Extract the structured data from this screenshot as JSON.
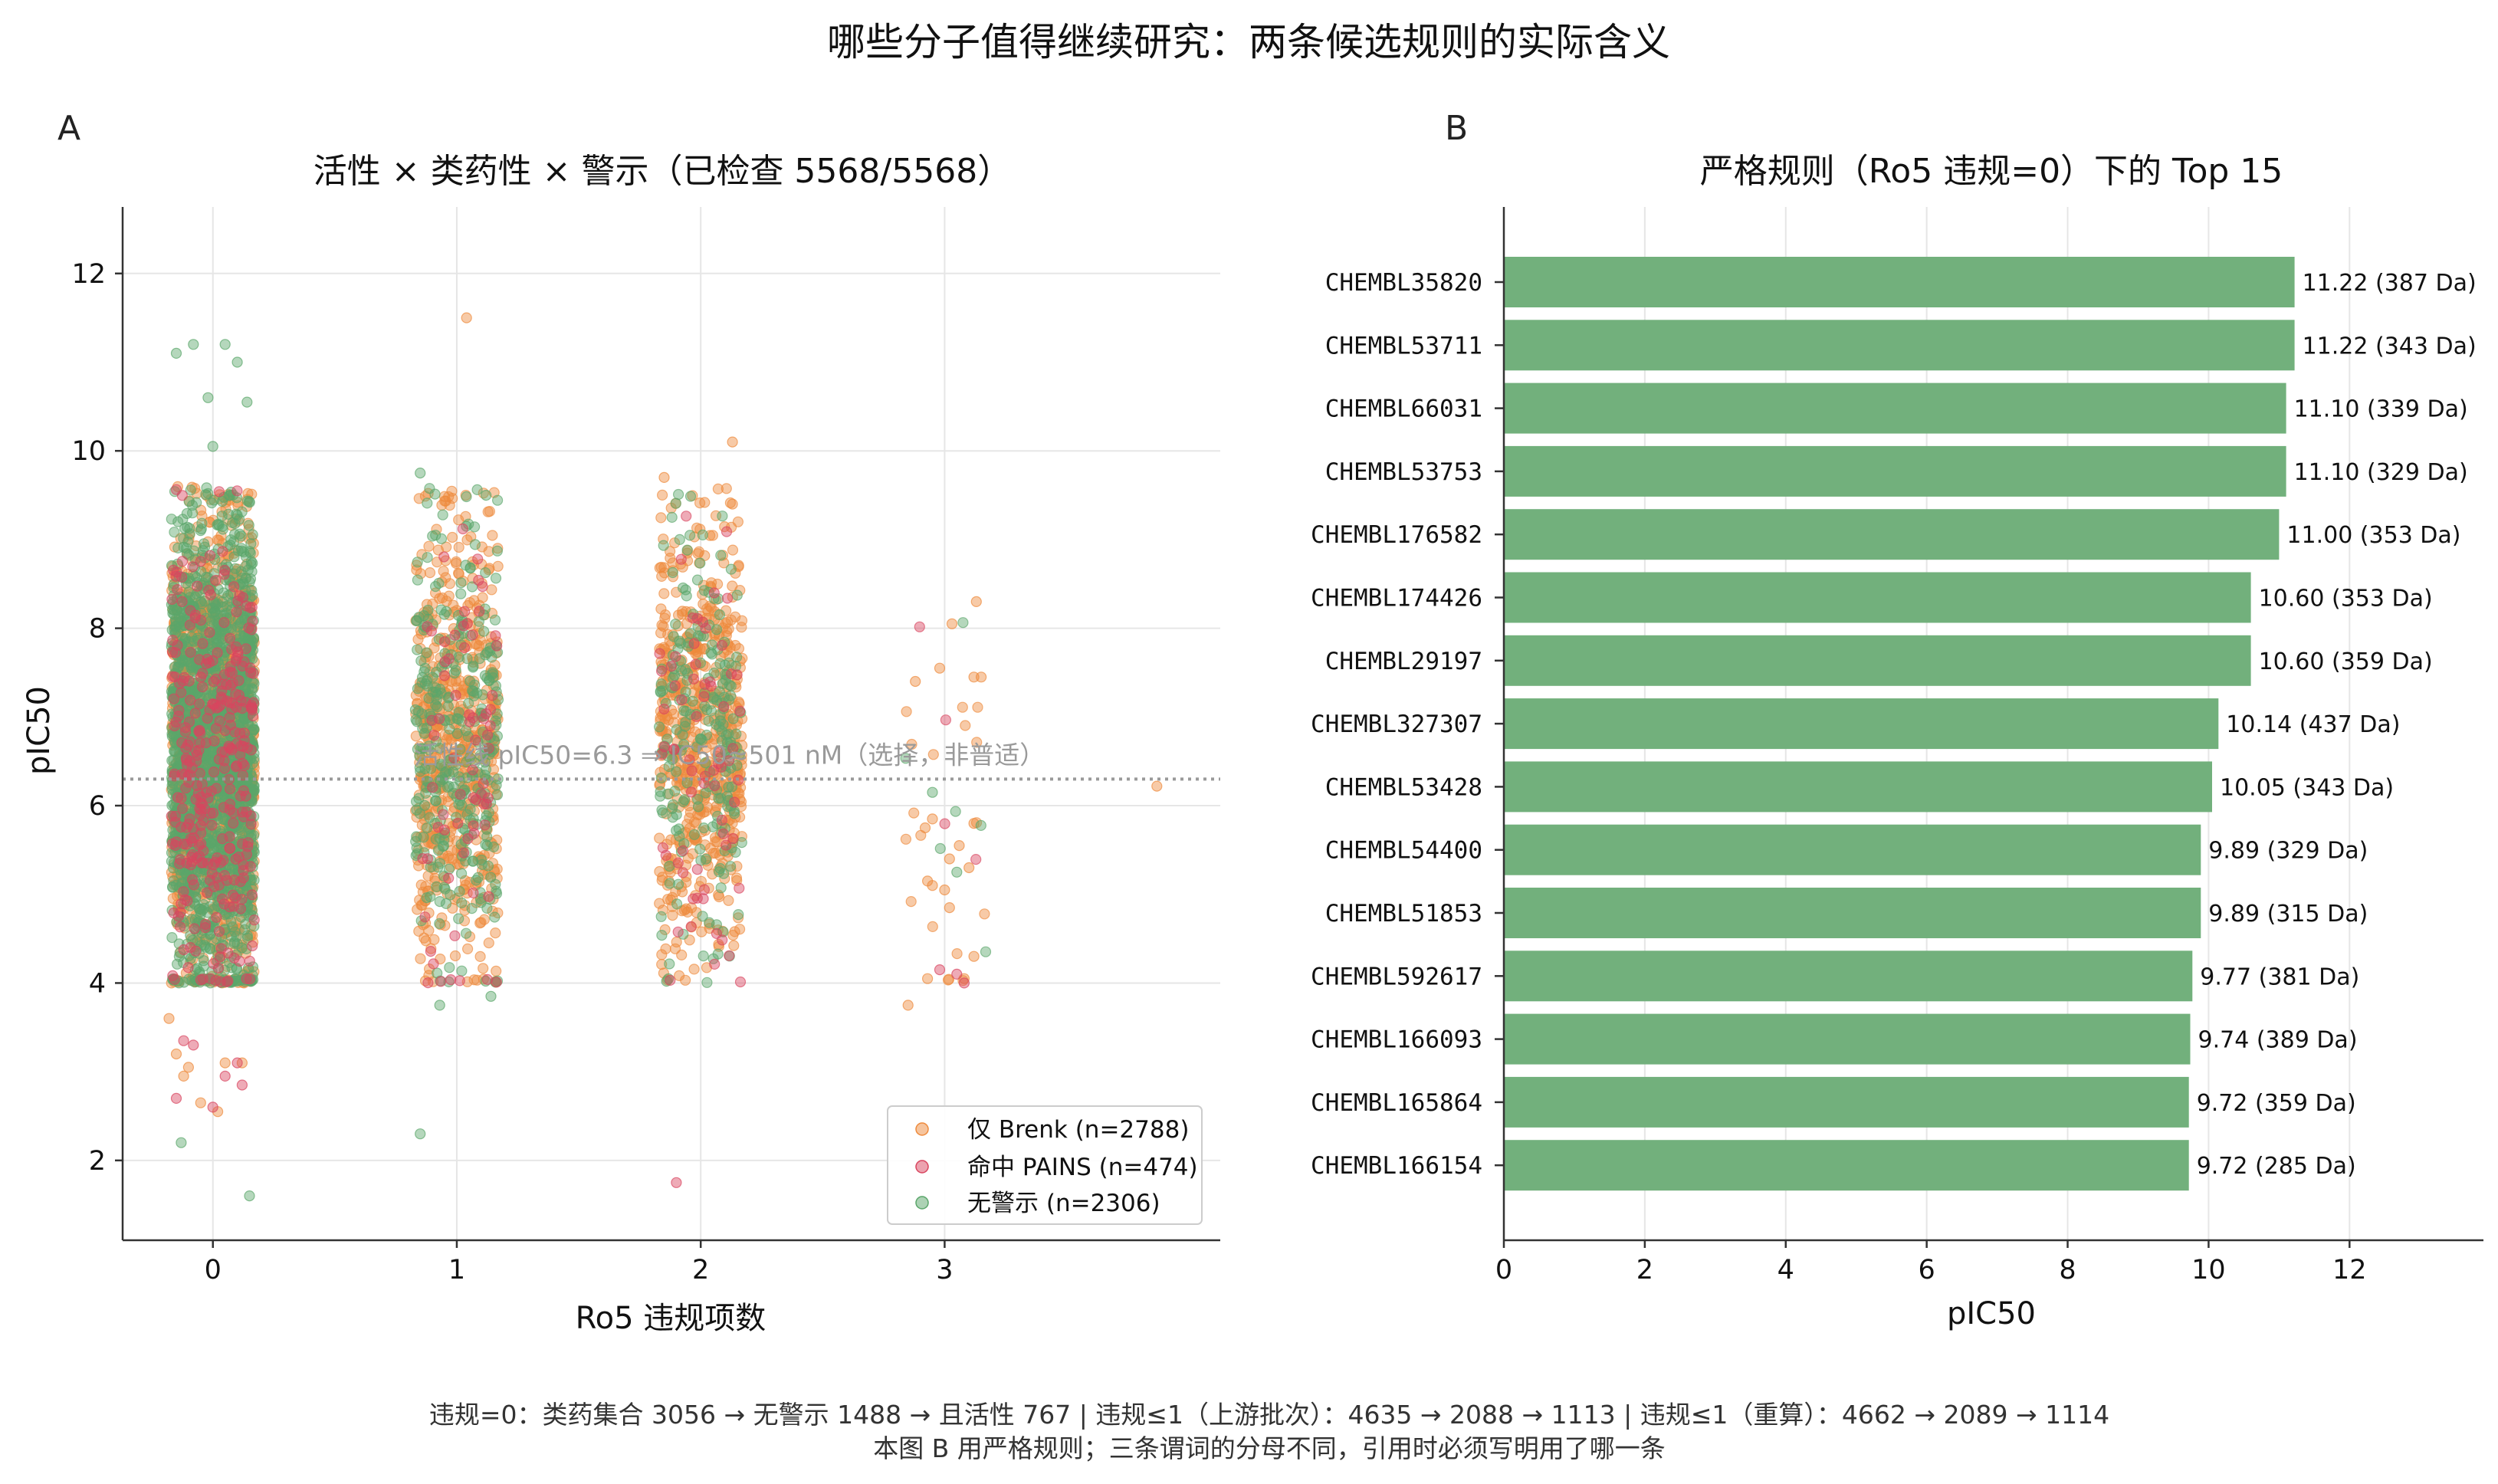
{
  "figure": {
    "title": "哪些分子值得继续研究：两条候选规则的实际含义",
    "footer_line1": "违规=0：类药集合 3056 → 无警示 1488 → 且活性 767   |   违规≤1（上游批次）：4635 → 2088 → 1113   |   违规≤1（重算）：4662 → 2089 → 1114",
    "footer_line2": "本图 B 用严格规则；三条谓词的分母不同，引用时必须写明用了哪一条"
  },
  "colors": {
    "brenk": "#ee8a3c",
    "pains": "#d9455f",
    "clean": "#5aa66a",
    "bar": "#72b07c",
    "threshold": "#999999",
    "grid": "#e6e6e6"
  },
  "chart_data": [
    {
      "type": "scatter",
      "panel_letter": "A",
      "title": "活性 × 类药性 × 警示（已检查 5568/5568）",
      "xlabel": "Ro5 违规项数",
      "ylabel": "pIC50",
      "x_ticks": [
        0,
        1,
        2,
        3
      ],
      "y_ticks": [
        2,
        4,
        6,
        8,
        10,
        12
      ],
      "xlim": [
        -0.37,
        4.13
      ],
      "ylim": [
        1.1,
        12.75
      ],
      "grid": true,
      "threshold": {
        "value": 6.3,
        "label": "活性线 pIC50=6.3 ⇒ IC50≈501 nM（选择，非普适）"
      },
      "legend_position": "lower right",
      "series": [
        {
          "key": "brenk",
          "name": "仅 Brenk (n=2788)",
          "n": 2788,
          "counts_by_x": [
            1560,
            600,
            610,
            18
          ],
          "outliers": [
            [
              1.04,
              11.5
            ],
            [
              1.85,
              9.7
            ],
            [
              2.13,
              10.1
            ],
            [
              2.13,
              9.4
            ],
            [
              3.13,
              8.3
            ],
            [
              3.03,
              8.05
            ],
            [
              2.98,
              7.55
            ],
            [
              3.15,
              7.45
            ],
            [
              3.12,
              7.45
            ],
            [
              2.88,
              7.4
            ],
            [
              3.87,
              6.22
            ],
            [
              2.95,
              5.85
            ],
            [
              2.92,
              5.75
            ],
            [
              3.12,
              5.8
            ],
            [
              3.06,
              5.55
            ],
            [
              3.02,
              5.4
            ],
            [
              3.1,
              5.3
            ],
            [
              2.95,
              5.1
            ],
            [
              3.0,
              5.05
            ],
            [
              2.93,
              5.15
            ],
            [
              3.02,
              4.85
            ],
            [
              3.12,
              4.3
            ],
            [
              2.93,
              4.05
            ],
            [
              3.08,
              4.05
            ],
            [
              2.85,
              3.75
            ],
            [
              -0.15,
              3.2
            ],
            [
              -0.1,
              3.05
            ],
            [
              0.05,
              3.1
            ],
            [
              -0.12,
              2.95
            ],
            [
              0.02,
              2.55
            ],
            [
              -0.05,
              2.65
            ],
            [
              -0.18,
              3.6
            ],
            [
              0.12,
              3.1
            ]
          ]
        },
        {
          "key": "pains",
          "name": "命中 PAINS (n=474)",
          "n": 474,
          "counts_by_x": [
            330,
            70,
            70,
            4
          ],
          "outliers": [
            [
              -0.15,
              2.7
            ],
            [
              0.0,
              2.6
            ],
            [
              0.1,
              3.1
            ],
            [
              -0.08,
              3.3
            ],
            [
              0.05,
              2.95
            ],
            [
              1.9,
              1.75
            ],
            [
              3.05,
              4.1
            ],
            [
              3.08,
              4.0
            ],
            [
              2.98,
              4.15
            ],
            [
              -0.12,
              3.35
            ],
            [
              0.12,
              2.85
            ]
          ]
        },
        {
          "key": "clean",
          "name": "无警示 (n=2306)",
          "n": 2306,
          "counts_by_x": [
            1750,
            330,
            220,
            6
          ],
          "outliers": [
            [
              -0.15,
              11.1
            ],
            [
              -0.08,
              11.2
            ],
            [
              0.05,
              11.2
            ],
            [
              0.1,
              11.0
            ],
            [
              -0.02,
              10.6
            ],
            [
              0.14,
              10.55
            ],
            [
              0.0,
              10.05
            ],
            [
              -0.13,
              2.2
            ],
            [
              0.15,
              1.6
            ],
            [
              0.85,
              2.3
            ],
            [
              0.85,
              9.75
            ],
            [
              1.12,
              9.5
            ],
            [
              2.95,
              6.15
            ],
            [
              3.05,
              5.25
            ],
            [
              0.93,
              3.75
            ],
            [
              1.14,
              3.85
            ]
          ]
        }
      ]
    },
    {
      "type": "bar",
      "orientation": "horizontal",
      "panel_letter": "B",
      "title": "严格规则（Ro5 违规=0）下的 Top 15",
      "xlabel": "pIC50",
      "x_ticks": [
        0,
        2,
        4,
        6,
        8,
        10,
        12
      ],
      "xlim": [
        0,
        13.9
      ],
      "grid": true,
      "categories": [
        "CHEMBL35820",
        "CHEMBL53711",
        "CHEMBL66031",
        "CHEMBL53753",
        "CHEMBL176582",
        "CHEMBL174426",
        "CHEMBL29197",
        "CHEMBL327307",
        "CHEMBL53428",
        "CHEMBL54400",
        "CHEMBL51853",
        "CHEMBL592617",
        "CHEMBL166093",
        "CHEMBL165864",
        "CHEMBL166154"
      ],
      "values": [
        11.22,
        11.22,
        11.1,
        11.1,
        11.0,
        10.6,
        10.6,
        10.14,
        10.05,
        9.89,
        9.89,
        9.77,
        9.74,
        9.72,
        9.72
      ],
      "labels": [
        "11.22  (387 Da)",
        "11.22  (343 Da)",
        "11.10  (339 Da)",
        "11.10  (329 Da)",
        "11.00  (353 Da)",
        "10.60  (353 Da)",
        "10.60  (359 Da)",
        "10.14  (437 Da)",
        "10.05  (343 Da)",
        "9.89  (329 Da)",
        "9.89  (315 Da)",
        "9.77  (381 Da)",
        "9.74  (389 Da)",
        "9.72  (359 Da)",
        "9.72  (285 Da)"
      ]
    }
  ]
}
